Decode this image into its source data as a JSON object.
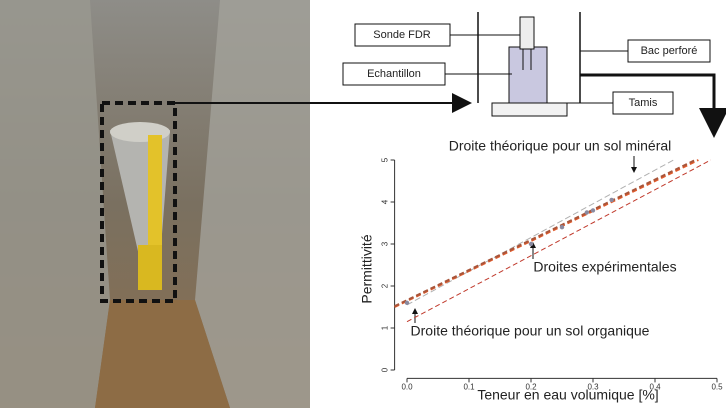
{
  "diagram": {
    "labels": [
      "Sonde FDR",
      "Echantillon",
      "Bac perforé",
      "Tamis"
    ]
  },
  "chart_data": {
    "type": "line",
    "xlabel": "Teneur en eau volumique [%]",
    "ylabel": "Permittivité",
    "annotations": [
      "Droite théorique pour un sol minéral",
      "Droites expérimentales",
      "Droite théorique pour un sol organique"
    ],
    "xlim": [
      -0.02,
      0.5
    ],
    "ylim": [
      -0.2,
      5
    ],
    "xticks": [
      {
        "value": 0,
        "label": "0.0"
      },
      0.1,
      0.2,
      0.3,
      0.4,
      0.5
    ],
    "yticks": [
      0,
      1,
      2,
      3,
      4,
      5
    ],
    "series": [
      {
        "color": "#b0b0b0",
        "x": [
          0,
          0.43
        ],
        "values": [
          1.55,
          5
        ]
      },
      {
        "color": "#e05a2b",
        "x": [
          -0.02,
          0.47
        ],
        "values": [
          1.5,
          5
        ]
      },
      {
        "color": "#a8553a",
        "x": [
          -0.02,
          0.465
        ],
        "values": [
          1.52,
          5
        ]
      },
      {
        "color": "#c0392b",
        "x": [
          0,
          0.49
        ],
        "values": [
          1.15,
          5
        ]
      }
    ],
    "points": {
      "color": "#8a8aa0",
      "x": [
        0,
        0.2,
        0.25,
        0.29,
        0.3,
        0.33
      ],
      "values": [
        1.6,
        3.0,
        3.4,
        3.75,
        3.8,
        4.05
      ]
    }
  }
}
